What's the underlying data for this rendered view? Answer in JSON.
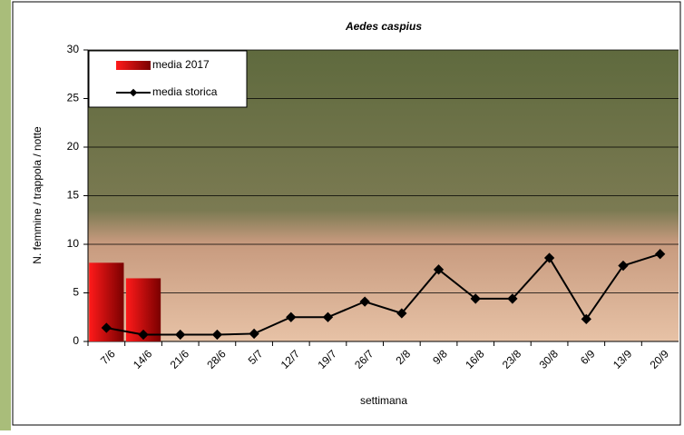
{
  "chart_data": {
    "type": "bar",
    "title": "Aedes caspius",
    "x_label": "settimana",
    "y_label": "N. femmine / trappola / notte",
    "categories": [
      "7/6",
      "14/6",
      "21/6",
      "28/6",
      "5/7",
      "12/7",
      "19/7",
      "26/7",
      "2/8",
      "9/8",
      "16/8",
      "23/8",
      "30/8",
      "6/9",
      "13/9",
      "20/9"
    ],
    "series": [
      {
        "name": "media 2017",
        "type": "bar",
        "color": "#c00000",
        "values": [
          8.1,
          6.5,
          null,
          null,
          null,
          null,
          null,
          null,
          null,
          null,
          null,
          null,
          null,
          null,
          null,
          null
        ]
      },
      {
        "name": "media storica",
        "type": "line",
        "color": "#000000",
        "values": [
          1.4,
          0.7,
          0.7,
          0.7,
          0.8,
          2.5,
          2.5,
          4.1,
          2.9,
          7.4,
          4.4,
          4.4,
          8.6,
          2.3,
          7.8,
          9.0
        ]
      }
    ],
    "ylim": [
      0,
      30
    ],
    "yticks": [
      0,
      5,
      10,
      15,
      20,
      25,
      30
    ],
    "grid": true,
    "legend": "top-left"
  }
}
